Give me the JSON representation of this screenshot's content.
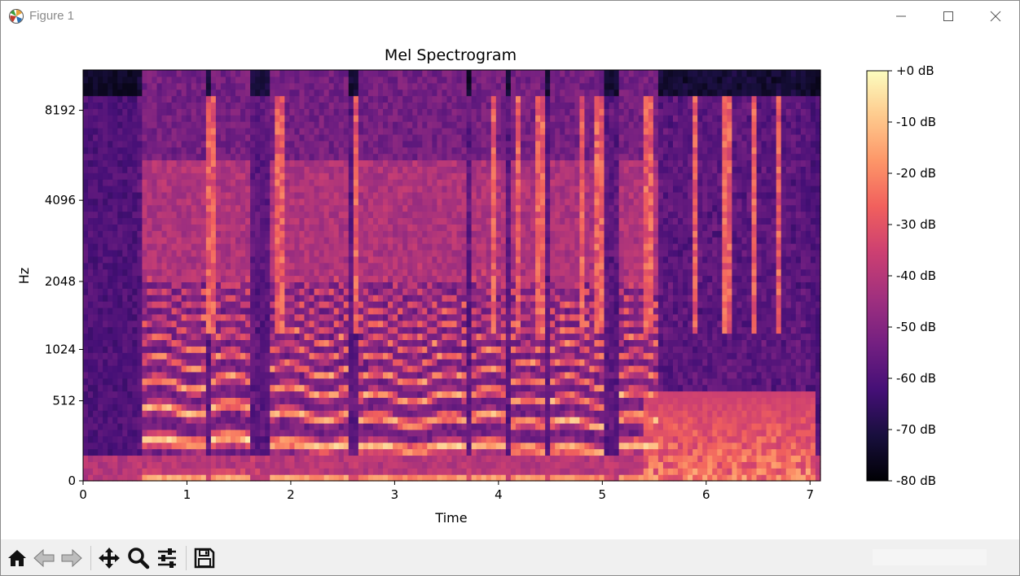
{
  "window": {
    "title": "Figure 1",
    "controls": {
      "minimize": "—",
      "maximize": "☐",
      "close": "✕"
    }
  },
  "toolbar": {
    "icons": [
      "home-icon",
      "back-icon",
      "forward-icon",
      "pan-icon",
      "zoom-icon",
      "configure-subplots-icon",
      "save-icon"
    ]
  },
  "colors": {
    "colormap": [
      "#000004",
      "#180f3d",
      "#440f76",
      "#721f81",
      "#9e2f7f",
      "#cd4071",
      "#f1605d",
      "#fd9668",
      "#feca8d",
      "#fcfdbf"
    ]
  },
  "chart_data": {
    "type": "heatmap",
    "title": "Mel Spectrogram",
    "xlabel": "Time",
    "ylabel": "Hz",
    "x_ticks": [
      "0",
      "1",
      "2",
      "3",
      "4",
      "5",
      "6",
      "7"
    ],
    "x_tick_values": [
      0,
      1,
      2,
      3,
      4,
      5,
      6,
      7
    ],
    "xlim": [
      0,
      7.1
    ],
    "y_scale": "mel",
    "y_ticks": [
      "0",
      "512",
      "1024",
      "2048",
      "4096",
      "8192"
    ],
    "y_tick_values": [
      0,
      512,
      1024,
      2048,
      4096,
      8192
    ],
    "ylim": [
      0,
      11025
    ],
    "colorbar": {
      "label_ticks": [
        "+0 dB",
        "-10 dB",
        "-20 dB",
        "-30 dB",
        "-40 dB",
        "-50 dB",
        "-60 dB",
        "-70 dB",
        "-80 dB"
      ],
      "tick_values": [
        0,
        -10,
        -20,
        -30,
        -40,
        -50,
        -60,
        -70,
        -80
      ],
      "range": [
        -80,
        0
      ],
      "colormap": "magma"
    },
    "grid": false,
    "voiced_segments": [
      {
        "start": 0.55,
        "end": 1.2,
        "f0": 220
      },
      {
        "start": 1.25,
        "end": 1.6,
        "f0": 230
      },
      {
        "start": 1.8,
        "end": 2.55,
        "f0": 200
      },
      {
        "start": 2.65,
        "end": 3.7,
        "f0": 180
      },
      {
        "start": 3.75,
        "end": 4.05,
        "f0": 190
      },
      {
        "start": 4.1,
        "end": 4.45,
        "f0": 165
      },
      {
        "start": 4.5,
        "end": 5.0,
        "f0": 170
      },
      {
        "start": 5.15,
        "end": 5.55,
        "f0": 185
      }
    ],
    "fricative_columns": [
      1.22,
      1.9,
      2.62,
      3.95,
      4.2,
      4.4,
      4.8,
      4.98,
      5.45,
      5.9,
      6.2,
      6.45,
      6.7
    ]
  }
}
